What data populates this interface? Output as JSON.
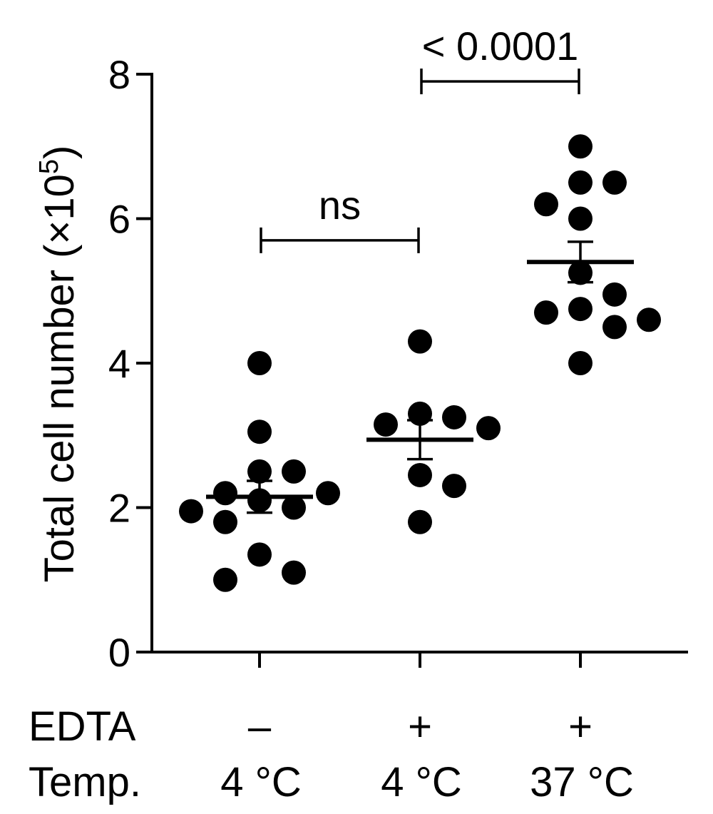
{
  "chart_data": {
    "type": "scatter",
    "ylabel": "Total cell number (×10",
    "ylabel_superscript": "5",
    "ylabel_close": ")",
    "ylim": [
      0,
      8
    ],
    "yticks": [
      "0",
      "2",
      "4",
      "6",
      "8"
    ],
    "grid": false,
    "legend": "none",
    "row_labels": [
      "EDTA",
      "Temp."
    ],
    "groups": [
      {
        "edta": "–",
        "temp": "4 °C",
        "points": [
          4.0,
          3.05,
          2.5,
          2.5,
          2.2,
          2.2,
          2.1,
          2.0,
          1.95,
          1.8,
          1.35,
          1.1,
          1.0
        ],
        "mean": 2.15,
        "sem": 0.22
      },
      {
        "edta": "+",
        "temp": "4 °C",
        "points": [
          4.3,
          3.3,
          3.25,
          3.15,
          3.1,
          2.45,
          2.3,
          1.8
        ],
        "mean": 2.94,
        "sem": 0.27
      },
      {
        "edta": "+",
        "temp": "37 °C",
        "points": [
          7.0,
          6.5,
          6.5,
          6.2,
          6.0,
          5.25,
          4.95,
          4.75,
          4.7,
          4.6,
          4.5,
          4.0
        ],
        "mean": 5.4,
        "sem": 0.28
      }
    ],
    "comparisons": [
      {
        "from": 0,
        "to": 1,
        "label": "ns",
        "y": 5.7
      },
      {
        "from": 1,
        "to": 2,
        "label": "< 0.0001",
        "y": 7.9
      }
    ],
    "colors": {
      "points": "#000000",
      "axes": "#000000"
    }
  }
}
